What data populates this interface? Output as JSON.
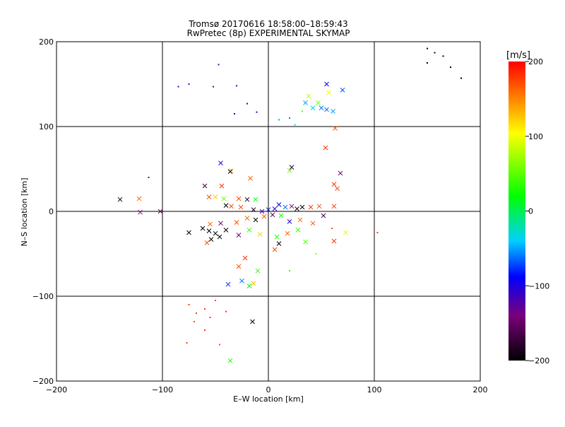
{
  "chart_data": {
    "type": "scatter",
    "title": "Tromsø 20170616 18:58:00–18:59:43",
    "subtitle": "RwPretec (8p) EXPERIMENTAL SKYMAP",
    "xlabel": "E–W location [km]",
    "ylabel": "N–S location [km]",
    "xlim": [
      -200,
      200
    ],
    "ylim": [
      -200,
      200
    ],
    "xticks": [
      -200,
      -100,
      0,
      100,
      200
    ],
    "yticks": [
      -200,
      -100,
      0,
      100,
      200
    ],
    "xtick_labels": [
      "−200",
      "−100",
      "0",
      "100",
      "200"
    ],
    "ytick_labels": [
      "−200",
      "−100",
      "0",
      "100",
      "200"
    ],
    "grid": true,
    "colorbar": {
      "label": "[m/s]",
      "range": [
        -200,
        200
      ],
      "ticks": [
        200,
        100,
        0,
        -100,
        -200
      ],
      "tick_labels": [
        "200",
        "100",
        "0",
        "−100",
        "−200"
      ],
      "colormap": [
        "#000000",
        "#7a007a",
        "#0000ff",
        "#00d0ff",
        "#00ff00",
        "#ffff00",
        "#ff0000"
      ]
    },
    "points": [
      {
        "x": -140,
        "y": 14,
        "v": -200,
        "marker": "x"
      },
      {
        "x": -122,
        "y": 15,
        "v": 160,
        "marker": "x"
      },
      {
        "x": -121,
        "y": -1,
        "v": -140,
        "marker": "x"
      },
      {
        "x": -102,
        "y": 0,
        "v": -150,
        "marker": "x"
      },
      {
        "x": -113,
        "y": 40,
        "v": -120,
        "marker": "dot"
      },
      {
        "x": -85,
        "y": 147,
        "v": -120,
        "marker": "dot"
      },
      {
        "x": -75,
        "y": 150,
        "v": -120,
        "marker": "dot"
      },
      {
        "x": -47,
        "y": 173,
        "v": -120,
        "marker": "dot"
      },
      {
        "x": -52,
        "y": 147,
        "v": -120,
        "marker": "dot"
      },
      {
        "x": -30,
        "y": 148,
        "v": -120,
        "marker": "dot"
      },
      {
        "x": -32,
        "y": 115,
        "v": -110,
        "marker": "dot"
      },
      {
        "x": -20,
        "y": 127,
        "v": -100,
        "marker": "dot"
      },
      {
        "x": -11,
        "y": 117,
        "v": -100,
        "marker": "dot"
      },
      {
        "x": 55,
        "y": 150,
        "v": -90,
        "marker": "x"
      },
      {
        "x": 70,
        "y": 143,
        "v": -70,
        "marker": "x"
      },
      {
        "x": 57,
        "y": 140,
        "v": 100,
        "marker": "x"
      },
      {
        "x": 38,
        "y": 136,
        "v": 80,
        "marker": "x"
      },
      {
        "x": 47,
        "y": 128,
        "v": 60,
        "marker": "x"
      },
      {
        "x": 50,
        "y": 122,
        "v": -60,
        "marker": "x"
      },
      {
        "x": 55,
        "y": 120,
        "v": -60,
        "marker": "x"
      },
      {
        "x": 61,
        "y": 118,
        "v": -50,
        "marker": "x"
      },
      {
        "x": 42,
        "y": 122,
        "v": -40,
        "marker": "x"
      },
      {
        "x": 35,
        "y": 128,
        "v": -50,
        "marker": "x"
      },
      {
        "x": 20,
        "y": 110,
        "v": -60,
        "marker": "dot"
      },
      {
        "x": 10,
        "y": 108,
        "v": -50,
        "marker": "dot"
      },
      {
        "x": 25,
        "y": 102,
        "v": -40,
        "marker": "dot"
      },
      {
        "x": 32,
        "y": 118,
        "v": 40,
        "marker": "dot"
      },
      {
        "x": 63,
        "y": 98,
        "v": 170,
        "marker": "x"
      },
      {
        "x": 54,
        "y": 75,
        "v": 180,
        "marker": "x"
      },
      {
        "x": 150,
        "y": 192,
        "v": -200,
        "marker": "dot"
      },
      {
        "x": 157,
        "y": 187,
        "v": -200,
        "marker": "dot"
      },
      {
        "x": 165,
        "y": 183,
        "v": -200,
        "marker": "dot"
      },
      {
        "x": 172,
        "y": 170,
        "v": -200,
        "marker": "dot"
      },
      {
        "x": 150,
        "y": 175,
        "v": -200,
        "marker": "dot"
      },
      {
        "x": 182,
        "y": 157,
        "v": -200,
        "marker": "dot"
      },
      {
        "x": -45,
        "y": 57,
        "v": -100,
        "marker": "x"
      },
      {
        "x": -35,
        "y": 48,
        "v": 120,
        "marker": "x"
      },
      {
        "x": -36,
        "y": 47,
        "v": -190,
        "marker": "x"
      },
      {
        "x": -17,
        "y": 39,
        "v": 170,
        "marker": "x"
      },
      {
        "x": 22,
        "y": 52,
        "v": -180,
        "marker": "x"
      },
      {
        "x": 20,
        "y": 48,
        "v": 60,
        "marker": "x"
      },
      {
        "x": 68,
        "y": 45,
        "v": -140,
        "marker": "x"
      },
      {
        "x": 62,
        "y": 32,
        "v": 180,
        "marker": "x"
      },
      {
        "x": 65,
        "y": 27,
        "v": 170,
        "marker": "x"
      },
      {
        "x": -60,
        "y": 30,
        "v": -170,
        "marker": "x"
      },
      {
        "x": -44,
        "y": 30,
        "v": 180,
        "marker": "x"
      },
      {
        "x": -56,
        "y": 17,
        "v": 170,
        "marker": "x"
      },
      {
        "x": -50,
        "y": 17,
        "v": 120,
        "marker": "x"
      },
      {
        "x": -42,
        "y": 15,
        "v": 60,
        "marker": "x"
      },
      {
        "x": -28,
        "y": 15,
        "v": 170,
        "marker": "x"
      },
      {
        "x": -20,
        "y": 14,
        "v": -190,
        "marker": "x"
      },
      {
        "x": -12,
        "y": 14,
        "v": 20,
        "marker": "x"
      },
      {
        "x": -40,
        "y": 7,
        "v": -200,
        "marker": "x"
      },
      {
        "x": -35,
        "y": 6,
        "v": 180,
        "marker": "x"
      },
      {
        "x": -26,
        "y": 5,
        "v": 170,
        "marker": "x"
      },
      {
        "x": -14,
        "y": 2,
        "v": -180,
        "marker": "x"
      },
      {
        "x": -6,
        "y": 0,
        "v": -120,
        "marker": "x"
      },
      {
        "x": 0,
        "y": 2,
        "v": -80,
        "marker": "x"
      },
      {
        "x": 6,
        "y": 3,
        "v": -110,
        "marker": "x"
      },
      {
        "x": 10,
        "y": 8,
        "v": -90,
        "marker": "x"
      },
      {
        "x": 16,
        "y": 5,
        "v": -60,
        "marker": "x"
      },
      {
        "x": 22,
        "y": 6,
        "v": -140,
        "marker": "x"
      },
      {
        "x": 27,
        "y": 3,
        "v": -190,
        "marker": "x"
      },
      {
        "x": 32,
        "y": 5,
        "v": -200,
        "marker": "x"
      },
      {
        "x": 40,
        "y": 5,
        "v": 180,
        "marker": "x"
      },
      {
        "x": 48,
        "y": 6,
        "v": 170,
        "marker": "x"
      },
      {
        "x": 62,
        "y": 6,
        "v": 180,
        "marker": "x"
      },
      {
        "x": 52,
        "y": -5,
        "v": -160,
        "marker": "x"
      },
      {
        "x": 42,
        "y": -14,
        "v": 170,
        "marker": "x"
      },
      {
        "x": 30,
        "y": -10,
        "v": 160,
        "marker": "x"
      },
      {
        "x": 20,
        "y": -12,
        "v": -110,
        "marker": "x"
      },
      {
        "x": 12,
        "y": -5,
        "v": 30,
        "marker": "x"
      },
      {
        "x": 4,
        "y": -4,
        "v": -170,
        "marker": "x"
      },
      {
        "x": -4,
        "y": -6,
        "v": 170,
        "marker": "x"
      },
      {
        "x": -12,
        "y": -10,
        "v": -200,
        "marker": "x"
      },
      {
        "x": -20,
        "y": -8,
        "v": 160,
        "marker": "x"
      },
      {
        "x": -30,
        "y": -13,
        "v": 170,
        "marker": "x"
      },
      {
        "x": -45,
        "y": -14,
        "v": -150,
        "marker": "x"
      },
      {
        "x": -55,
        "y": -15,
        "v": 160,
        "marker": "x"
      },
      {
        "x": -62,
        "y": -20,
        "v": -200,
        "marker": "x"
      },
      {
        "x": -56,
        "y": -23,
        "v": -200,
        "marker": "x"
      },
      {
        "x": -50,
        "y": -26,
        "v": -200,
        "marker": "x"
      },
      {
        "x": -46,
        "y": -30,
        "v": -200,
        "marker": "x"
      },
      {
        "x": -54,
        "y": -33,
        "v": -200,
        "marker": "x"
      },
      {
        "x": -58,
        "y": -37,
        "v": 170,
        "marker": "x"
      },
      {
        "x": -75,
        "y": -25,
        "v": -200,
        "marker": "x"
      },
      {
        "x": -40,
        "y": -22,
        "v": -200,
        "marker": "x"
      },
      {
        "x": -28,
        "y": -28,
        "v": -130,
        "marker": "x"
      },
      {
        "x": -18,
        "y": -22,
        "v": 40,
        "marker": "x"
      },
      {
        "x": -8,
        "y": -27,
        "v": 120,
        "marker": "x"
      },
      {
        "x": 8,
        "y": -30,
        "v": 30,
        "marker": "x"
      },
      {
        "x": 18,
        "y": -26,
        "v": 170,
        "marker": "x"
      },
      {
        "x": 28,
        "y": -22,
        "v": 40,
        "marker": "x"
      },
      {
        "x": 35,
        "y": -36,
        "v": 40,
        "marker": "x"
      },
      {
        "x": 10,
        "y": -38,
        "v": -200,
        "marker": "x"
      },
      {
        "x": 6,
        "y": -45,
        "v": 170,
        "marker": "x"
      },
      {
        "x": 62,
        "y": -35,
        "v": 180,
        "marker": "x"
      },
      {
        "x": 73,
        "y": -25,
        "v": 110,
        "marker": "x"
      },
      {
        "x": -22,
        "y": -55,
        "v": 180,
        "marker": "x"
      },
      {
        "x": -28,
        "y": -65,
        "v": 170,
        "marker": "x"
      },
      {
        "x": -10,
        "y": -70,
        "v": 40,
        "marker": "x"
      },
      {
        "x": -25,
        "y": -82,
        "v": -60,
        "marker": "x"
      },
      {
        "x": -18,
        "y": -88,
        "v": 20,
        "marker": "x"
      },
      {
        "x": -14,
        "y": -85,
        "v": 130,
        "marker": "x"
      },
      {
        "x": -38,
        "y": -86,
        "v": -80,
        "marker": "x"
      },
      {
        "x": -15,
        "y": -130,
        "v": -200,
        "marker": "x"
      },
      {
        "x": -36,
        "y": -176,
        "v": 30,
        "marker": "x"
      },
      {
        "x": -75,
        "y": -110,
        "v": 180,
        "marker": "dot"
      },
      {
        "x": -68,
        "y": -120,
        "v": 180,
        "marker": "dot"
      },
      {
        "x": -60,
        "y": -115,
        "v": 180,
        "marker": "dot"
      },
      {
        "x": -55,
        "y": -125,
        "v": 180,
        "marker": "dot"
      },
      {
        "x": -70,
        "y": -130,
        "v": 170,
        "marker": "dot"
      },
      {
        "x": -50,
        "y": -105,
        "v": 170,
        "marker": "dot"
      },
      {
        "x": -40,
        "y": -118,
        "v": 180,
        "marker": "dot"
      },
      {
        "x": -77,
        "y": -155,
        "v": 180,
        "marker": "dot"
      },
      {
        "x": -46,
        "y": -157,
        "v": 170,
        "marker": "dot"
      },
      {
        "x": -60,
        "y": -140,
        "v": 180,
        "marker": "dot"
      },
      {
        "x": 103,
        "y": -25,
        "v": 180,
        "marker": "dot"
      },
      {
        "x": 60,
        "y": -20,
        "v": 170,
        "marker": "dot"
      },
      {
        "x": 45,
        "y": -50,
        "v": 60,
        "marker": "dot"
      },
      {
        "x": 20,
        "y": -70,
        "v": 40,
        "marker": "dot"
      }
    ]
  }
}
